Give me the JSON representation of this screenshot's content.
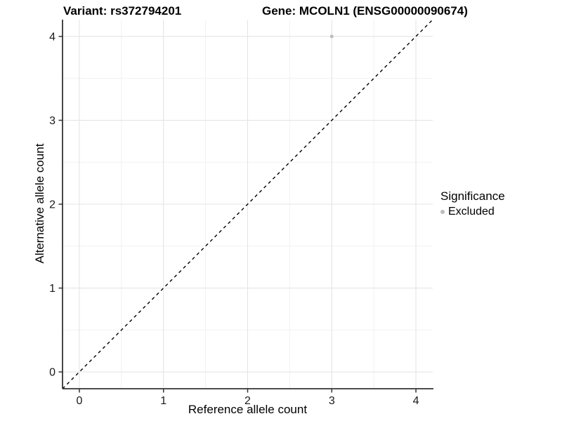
{
  "title": {
    "variant": "Variant: rs372794201",
    "gene": "Gene: MCOLN1 (ENSG00000090674)"
  },
  "chart_data": {
    "type": "scatter",
    "title": "Variant: rs372794201   Gene: MCOLN1 (ENSG00000090674)",
    "xlabel": "Reference allele count",
    "ylabel": "Alternative allele count",
    "xlim": [
      -0.2,
      4.2
    ],
    "ylim": [
      -0.2,
      4.2
    ],
    "x_ticks": [
      0,
      1,
      2,
      3,
      4
    ],
    "y_ticks": [
      0,
      1,
      2,
      3,
      4
    ],
    "x_minor_ticks": [
      0.5,
      1.5,
      2.5,
      3.5
    ],
    "y_minor_ticks": [
      0.5,
      1.5,
      2.5,
      3.5
    ],
    "grid": true,
    "series": [
      {
        "name": "Excluded",
        "color": "#bdbdbd",
        "points": [
          {
            "x": 3,
            "y": 4
          }
        ]
      }
    ],
    "reference_line": {
      "type": "identity",
      "slope": 1,
      "intercept": 0,
      "style": "dashed",
      "color": "#000000"
    },
    "legend": {
      "title": "Significance",
      "position": "right",
      "entries": [
        {
          "label": "Excluded",
          "color": "#bdbdbd"
        }
      ]
    }
  },
  "colors": {
    "background": "#ffffff",
    "grid_major": "#e4e4e4",
    "grid_minor": "#f0f0f0",
    "axis_line": "#333333",
    "tick_mark": "#333333",
    "tick_text": "#1a1a1a",
    "point": "#bdbdbd",
    "reference_line": "#000000"
  }
}
